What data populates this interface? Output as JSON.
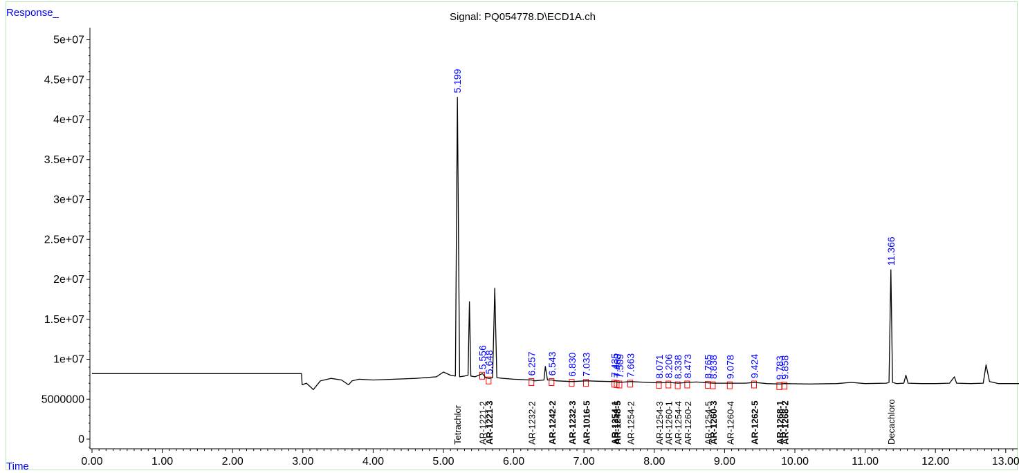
{
  "chart_data": {
    "type": "line",
    "title": "Signal: PQ054778.D\\ECD1A.ch",
    "ylabel": "Response_",
    "xlabel": "Time",
    "xlim": [
      0,
      13.3
    ],
    "ylim": [
      -1500000,
      52000000
    ],
    "x_ticks": [
      0,
      1,
      2,
      3,
      4,
      5,
      6,
      7,
      8,
      9,
      10,
      11,
      12,
      13
    ],
    "x_tick_labels": [
      "0.00",
      "1.00",
      "2.00",
      "3.00",
      "4.00",
      "5.00",
      "6.00",
      "7.00",
      "8.00",
      "9.00",
      "10.00",
      "11.00",
      "12.00",
      "13.00"
    ],
    "y_ticks": [
      0,
      5000000,
      10000000,
      15000000,
      20000000,
      25000000,
      30000000,
      35000000,
      40000000,
      45000000,
      50000000
    ],
    "y_tick_labels": [
      "0",
      "5000000",
      "1e+07",
      "1.5e+07",
      "2e+07",
      "2.5e+07",
      "3e+07",
      "3.5e+07",
      "4e+07",
      "4.5e+07",
      "5e+07"
    ],
    "series": [
      {
        "color": "#000000",
        "x": [
          0,
          2.98,
          2.99,
          3.05,
          3.15,
          3.25,
          3.4,
          3.55,
          3.65,
          3.7,
          3.8,
          4.0,
          4.3,
          4.6,
          4.9,
          5.0,
          5.1,
          5.17,
          5.199,
          5.23,
          5.3,
          5.35,
          5.37,
          5.39,
          5.45,
          5.5,
          5.556,
          5.6,
          5.648,
          5.7,
          5.73,
          5.76,
          5.85,
          6.0,
          6.257,
          6.3,
          6.43,
          6.45,
          6.48,
          6.543,
          6.6,
          6.83,
          7.033,
          7.2,
          7.435,
          7.5,
          7.663,
          7.9,
          8.071,
          8.206,
          8.338,
          8.473,
          8.6,
          8.765,
          8.838,
          9.078,
          9.3,
          9.424,
          9.6,
          9.783,
          9.858,
          10.2,
          10.6,
          10.8,
          11.0,
          11.3,
          11.34,
          11.366,
          11.39,
          11.45,
          11.55,
          11.58,
          11.61,
          11.8,
          12.0,
          12.2,
          12.27,
          12.3,
          12.5,
          12.68,
          12.72,
          12.77,
          12.9,
          13.3
        ],
        "y": [
          8200000,
          8200000,
          6800000,
          7000000,
          6200000,
          7300000,
          7600000,
          7400000,
          6800000,
          7300000,
          7500000,
          7400000,
          7500000,
          7600000,
          7800000,
          8400000,
          8000000,
          7900000,
          42800000,
          7800000,
          7900000,
          8000000,
          17200000,
          7900000,
          7800000,
          8000000,
          8200000,
          7700000,
          7600000,
          7700000,
          18900000,
          7700000,
          7600000,
          7500000,
          7400000,
          7300000,
          7400000,
          9100000,
          7400000,
          7400000,
          7300000,
          7200000,
          7300000,
          7250000,
          7200000,
          7100000,
          7200000,
          7100000,
          7050000,
          7100000,
          7000000,
          7100000,
          7150000,
          7050000,
          7000000,
          7000000,
          7000000,
          7100000,
          6950000,
          6900000,
          6950000,
          6900000,
          6950000,
          7100000,
          6950000,
          7000000,
          7100000,
          21200000,
          7100000,
          6950000,
          7000000,
          8000000,
          7000000,
          6950000,
          6950000,
          7000000,
          7800000,
          7000000,
          6950000,
          7000000,
          9300000,
          7200000,
          6950000,
          6950000
        ]
      }
    ],
    "peak_labels": [
      {
        "x": 5.199,
        "y": 42800000,
        "label": "5.199"
      },
      {
        "x": 5.556,
        "y": 8200000,
        "label": "5.556"
      },
      {
        "x": 5.648,
        "y": 7600000,
        "label": "5.648"
      },
      {
        "x": 6.257,
        "y": 7400000,
        "label": "6.257"
      },
      {
        "x": 6.543,
        "y": 7400000,
        "label": "6.543"
      },
      {
        "x": 6.83,
        "y": 7300000,
        "label": "6.830"
      },
      {
        "x": 7.033,
        "y": 7300000,
        "label": "7.033"
      },
      {
        "x": 7.435,
        "y": 7200000,
        "label": "7.435"
      },
      {
        "x": 7.47,
        "y": 7150000,
        "label": "7.469"
      },
      {
        "x": 7.509,
        "y": 7100000,
        "label": "7.509"
      },
      {
        "x": 7.663,
        "y": 7200000,
        "label": "7.663"
      },
      {
        "x": 8.071,
        "y": 7050000,
        "label": "8.071"
      },
      {
        "x": 8.206,
        "y": 7100000,
        "label": "8.206"
      },
      {
        "x": 8.338,
        "y": 7000000,
        "label": "8.338"
      },
      {
        "x": 8.473,
        "y": 7100000,
        "label": "8.473"
      },
      {
        "x": 8.765,
        "y": 7050000,
        "label": "8.765"
      },
      {
        "x": 8.838,
        "y": 7000000,
        "label": "8.838"
      },
      {
        "x": 9.078,
        "y": 7000000,
        "label": "9.078"
      },
      {
        "x": 9.424,
        "y": 7100000,
        "label": "9.424"
      },
      {
        "x": 9.783,
        "y": 6900000,
        "label": "9.783"
      },
      {
        "x": 9.858,
        "y": 6950000,
        "label": "9.858"
      },
      {
        "x": 11.366,
        "y": 21200000,
        "label": "11.366"
      }
    ],
    "compound_labels": [
      {
        "x": 5.199,
        "label": "Tetrachlor",
        "bold": false
      },
      {
        "x": 5.556,
        "label": "AR-1221-2",
        "bold": false
      },
      {
        "x": 5.648,
        "label": "AR-1221-3",
        "bold": true
      },
      {
        "x": 6.257,
        "label": "AR-1232-2",
        "bold": false
      },
      {
        "x": 6.543,
        "label": "AR-1242-2",
        "bold": true
      },
      {
        "x": 6.83,
        "label": "AR-1232-3",
        "bold": true
      },
      {
        "x": 7.033,
        "label": "AR-1016-5",
        "bold": true
      },
      {
        "x": 7.435,
        "label": "AR-1254-1",
        "bold": true
      },
      {
        "x": 7.47,
        "label": "AR-1248-5",
        "bold": true
      },
      {
        "x": 7.663,
        "label": "AR-1254-2",
        "bold": false
      },
      {
        "x": 8.071,
        "label": "AR-1254-3",
        "bold": false
      },
      {
        "x": 8.206,
        "label": "AR-1260-1",
        "bold": false
      },
      {
        "x": 8.338,
        "label": "AR-1254-4",
        "bold": false
      },
      {
        "x": 8.473,
        "label": "AR-1260-2",
        "bold": false
      },
      {
        "x": 8.765,
        "label": "AR-1254-5",
        "bold": false
      },
      {
        "x": 8.838,
        "label": "AR-1260-3",
        "bold": true
      },
      {
        "x": 9.078,
        "label": "AR-1260-4",
        "bold": false
      },
      {
        "x": 9.424,
        "label": "AR-1262-5",
        "bold": true
      },
      {
        "x": 9.783,
        "label": "AR-1268-1",
        "bold": true
      },
      {
        "x": 9.858,
        "label": "AR-1268-2",
        "bold": true
      },
      {
        "x": 11.366,
        "label": "Decachloro",
        "bold": false
      }
    ],
    "colors": {
      "signal": "#000000",
      "peak_label": "#0000ff",
      "baseline_marker": "#ff0000",
      "axis_label": "#0000ff",
      "frame": "#b8e8b8"
    },
    "grid": false
  }
}
